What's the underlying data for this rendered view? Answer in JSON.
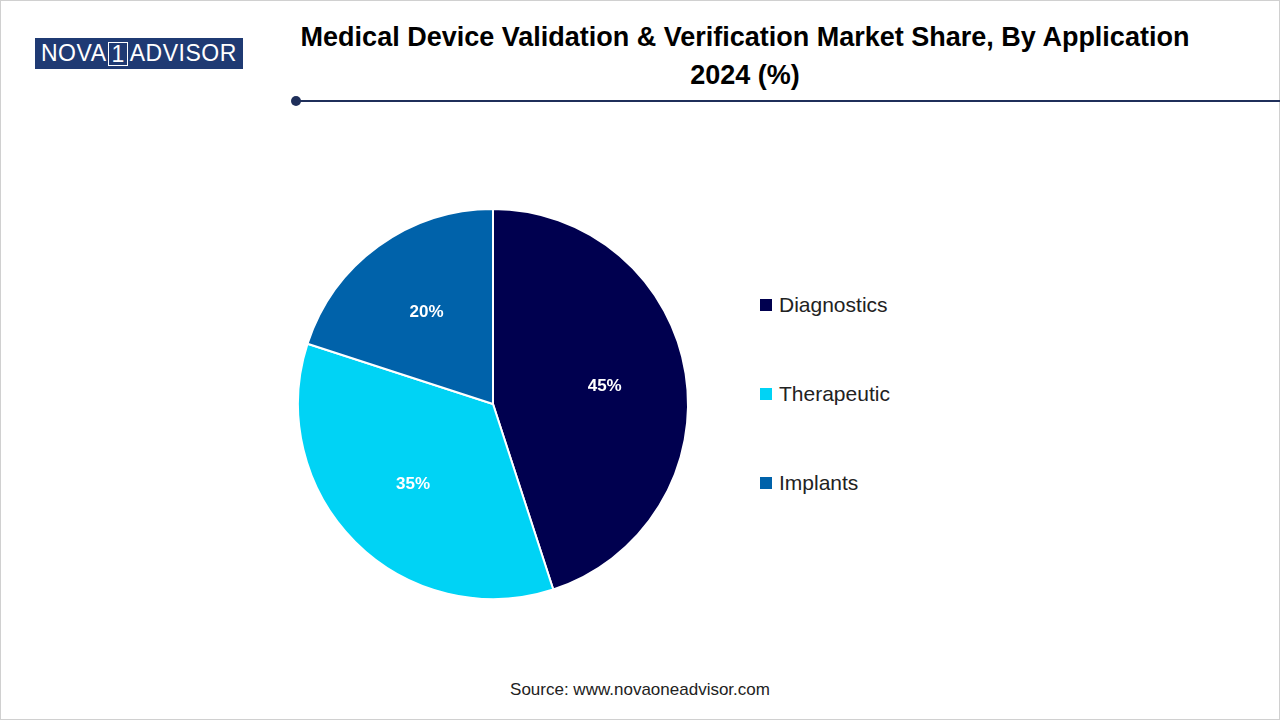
{
  "chart_data": {
    "type": "pie",
    "title": "Medical Device Validation & Verification Market Share, By Application 2024 (%)",
    "logo": [
      "NOVA",
      "1",
      "ADVISOR"
    ],
    "source": "Source: www.novaoneadvisor.com",
    "categories": [
      "Diagnostics",
      "Therapeutic",
      "Implants"
    ],
    "values": [
      45,
      35,
      20
    ],
    "value_labels": [
      "45%",
      "35%",
      "20%"
    ],
    "colors": [
      "#00004f",
      "#00d3f5",
      "#0062aa"
    ],
    "data_labels": true,
    "legend": "right"
  }
}
